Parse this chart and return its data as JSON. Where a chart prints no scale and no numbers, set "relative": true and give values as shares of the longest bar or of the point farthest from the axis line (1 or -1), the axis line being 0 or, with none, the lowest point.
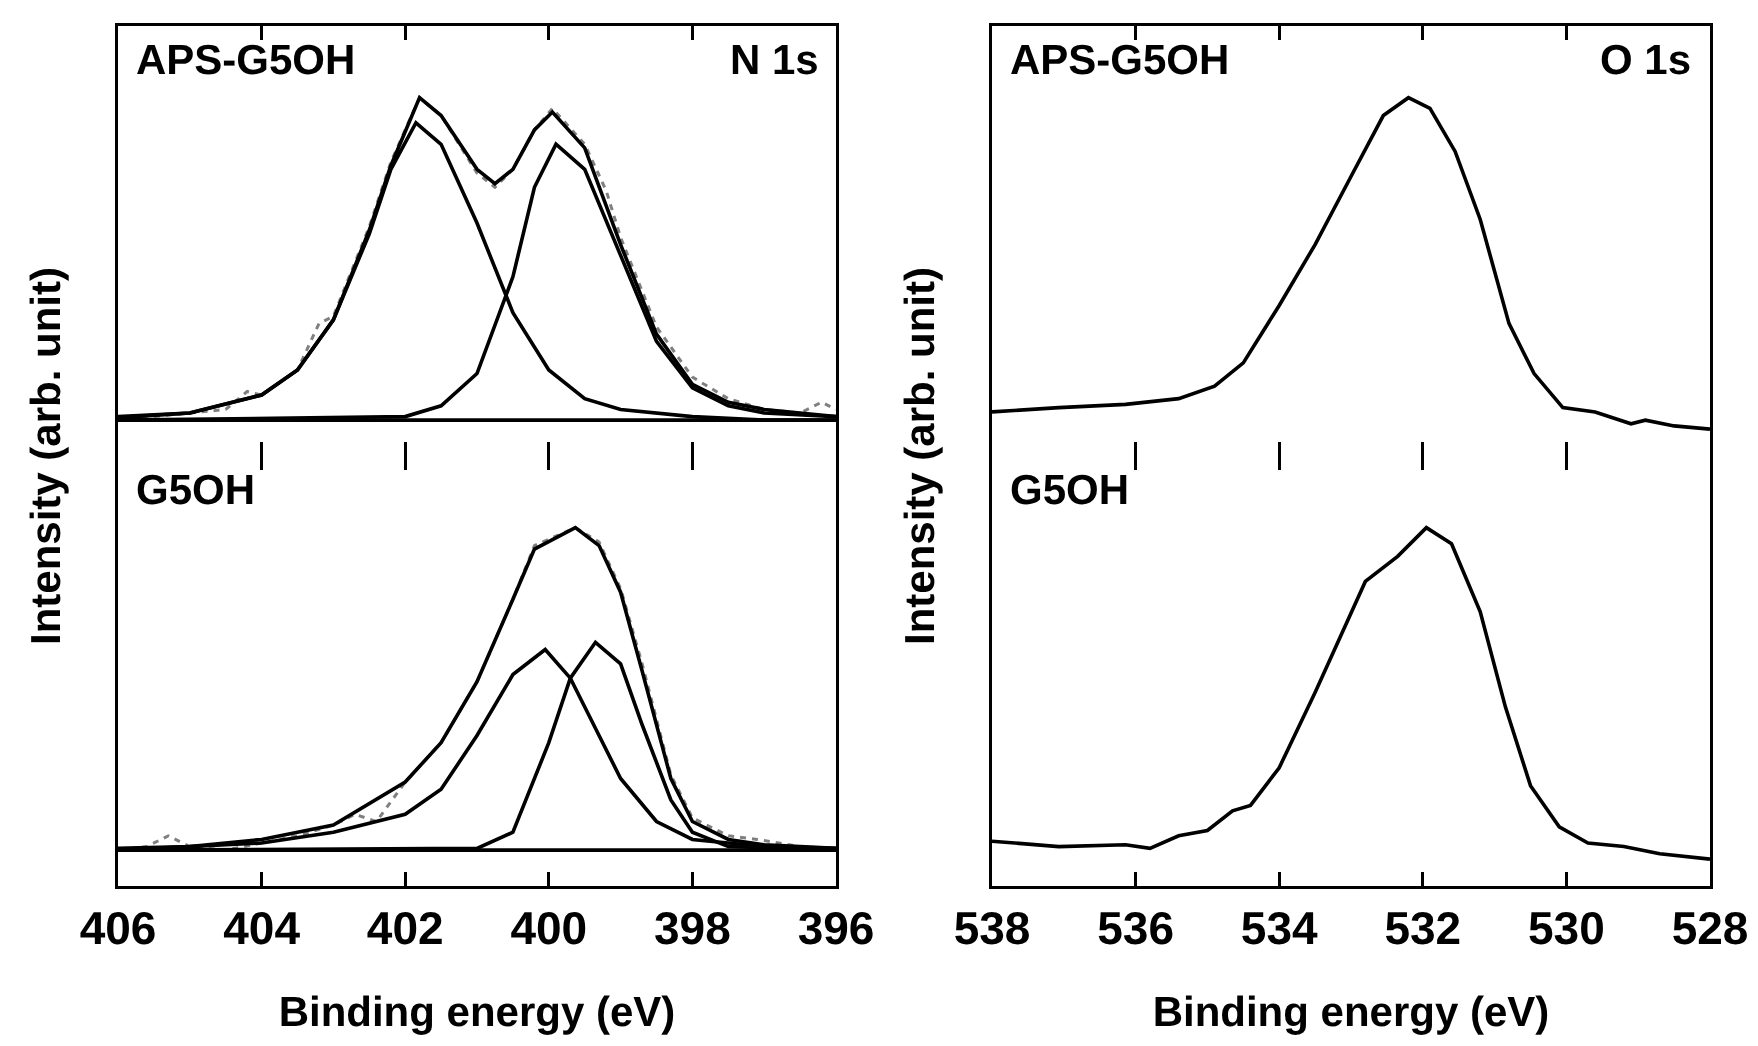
{
  "chart_data": [
    {
      "type": "line",
      "relative": true,
      "annotations": [
        "APS-G5OH",
        "N 1s"
      ],
      "xlim": [
        406,
        396
      ],
      "xticks": [
        406,
        404,
        402,
        400,
        398,
        396
      ],
      "tick_labels": false,
      "series": [
        {
          "color": "#808080",
          "line_style": "dotted",
          "x": [
            406,
            405.5,
            405,
            404.5,
            404.2,
            404,
            403.5,
            403.2,
            403,
            402.5,
            402.2,
            401.8,
            401.5,
            401,
            400.75,
            400.5,
            400.2,
            399.95,
            399.5,
            399.2,
            399,
            398.5,
            398,
            397.5,
            397,
            396.5,
            396.2,
            396
          ],
          "values": [
            0.1,
            0.11,
            0.12,
            0.13,
            0.18,
            0.17,
            0.24,
            0.37,
            0.39,
            0.64,
            0.82,
            1.0,
            0.95,
            0.79,
            0.75,
            0.8,
            0.91,
            0.97,
            0.87,
            0.74,
            0.61,
            0.36,
            0.22,
            0.16,
            0.13,
            0.12,
            0.15,
            0.13
          ]
        },
        {
          "color": "#000000",
          "line_style": "solid",
          "x": [
            406,
            405,
            404,
            403.5,
            403,
            402.5,
            402.2,
            401.8,
            401.5,
            401,
            400.75,
            400.5,
            400.2,
            399.95,
            399.5,
            399,
            398.5,
            398,
            397.5,
            397,
            396
          ],
          "values": [
            0.107,
            0.12,
            0.17,
            0.24,
            0.38,
            0.63,
            0.81,
            1.0,
            0.95,
            0.8,
            0.76,
            0.8,
            0.91,
            0.96,
            0.86,
            0.59,
            0.34,
            0.2,
            0.15,
            0.13,
            0.11
          ]
        },
        {
          "color": "#000000",
          "line_style": "solid",
          "x": [
            406,
            405,
            404,
            403.5,
            403,
            402.5,
            402.2,
            401.85,
            401.5,
            401,
            400.5,
            400,
            399.5,
            399,
            398,
            397,
            396
          ],
          "values": [
            0.11,
            0.12,
            0.17,
            0.24,
            0.38,
            0.62,
            0.8,
            0.93,
            0.87,
            0.65,
            0.4,
            0.24,
            0.16,
            0.13,
            0.11,
            0.1,
            0.1
          ]
        },
        {
          "color": "#000000",
          "line_style": "solid",
          "x": [
            406,
            402,
            401.5,
            401,
            400.5,
            400.2,
            399.9,
            399.5,
            399,
            398.5,
            398,
            397.5,
            397,
            396
          ],
          "values": [
            0.1,
            0.11,
            0.14,
            0.23,
            0.5,
            0.75,
            0.87,
            0.8,
            0.56,
            0.32,
            0.19,
            0.14,
            0.12,
            0.11
          ]
        },
        {
          "color": "#000000",
          "line_style": "solid",
          "x": [
            406,
            396
          ],
          "values": [
            0.1,
            0.1
          ]
        }
      ]
    },
    {
      "type": "line",
      "relative": true,
      "annotations": [
        "G5OH"
      ],
      "xlabel": "Binding energy (eV)",
      "ylabel": "Intensity (arb. unit)",
      "xlim": [
        406,
        396
      ],
      "xticks": [
        406,
        404,
        402,
        400,
        398,
        396
      ],
      "tick_labels": "x",
      "series": [
        {
          "color": "#808080",
          "line_style": "dotted",
          "x": [
            406,
            405.6,
            405.3,
            405,
            404.5,
            404,
            403.5,
            403,
            402.7,
            402.4,
            402,
            401.5,
            401,
            400.5,
            400.2,
            399.63,
            399.3,
            399,
            398.7,
            398.3,
            398,
            397.5,
            397.1,
            396.5,
            396
          ],
          "values": [
            0.1,
            0.11,
            0.14,
            0.11,
            0.1,
            0.12,
            0.14,
            0.17,
            0.2,
            0.18,
            0.29,
            0.4,
            0.57,
            0.8,
            0.95,
            1.0,
            0.96,
            0.83,
            0.62,
            0.31,
            0.19,
            0.14,
            0.13,
            0.11,
            0.105
          ]
        },
        {
          "color": "#000000",
          "line_style": "solid",
          "x": [
            406,
            405,
            404,
            403,
            402,
            401.5,
            401,
            400.5,
            400.2,
            399.63,
            399.3,
            399,
            398.7,
            398.3,
            398,
            397.5,
            397,
            396
          ],
          "values": [
            0.105,
            0.11,
            0.13,
            0.17,
            0.29,
            0.4,
            0.57,
            0.8,
            0.94,
            1.0,
            0.95,
            0.82,
            0.6,
            0.3,
            0.18,
            0.13,
            0.115,
            0.105
          ]
        },
        {
          "color": "#000000",
          "line_style": "solid",
          "x": [
            406,
            404,
            403,
            402,
            401.5,
            401,
            400.5,
            400.05,
            399.7,
            399.3,
            399,
            398.5,
            398,
            397,
            396
          ],
          "values": [
            0.1,
            0.12,
            0.15,
            0.2,
            0.27,
            0.42,
            0.59,
            0.66,
            0.58,
            0.42,
            0.3,
            0.18,
            0.13,
            0.11,
            0.105
          ]
        },
        {
          "color": "#000000",
          "line_style": "solid",
          "x": [
            406,
            401,
            400.5,
            400,
            399.7,
            399.35,
            399,
            398.7,
            398.3,
            398,
            397.5,
            396
          ],
          "values": [
            0.1,
            0.105,
            0.15,
            0.4,
            0.58,
            0.68,
            0.62,
            0.45,
            0.24,
            0.15,
            0.11,
            0.1
          ]
        },
        {
          "color": "#000000",
          "line_style": "solid",
          "x": [
            406,
            396
          ],
          "values": [
            0.1,
            0.1
          ]
        }
      ]
    },
    {
      "type": "line",
      "relative": true,
      "annotations": [
        "APS-G5OH",
        "O 1s"
      ],
      "xlim": [
        538,
        528
      ],
      "xticks": [
        538,
        536,
        534,
        532,
        530,
        528
      ],
      "tick_labels": false,
      "series": [
        {
          "color": "#000000",
          "line_style": "solid",
          "x": [
            538,
            537.07,
            536.14,
            535.4,
            534.9,
            534.5,
            534.0,
            533.5,
            533.0,
            532.55,
            532.2,
            531.9,
            531.55,
            531.2,
            530.8,
            530.45,
            530.05,
            529.6,
            529.1,
            528.9,
            528.5,
            528
          ],
          "values": [
            0.123,
            0.135,
            0.144,
            0.16,
            0.195,
            0.26,
            0.42,
            0.59,
            0.78,
            0.95,
            1.0,
            0.97,
            0.85,
            0.66,
            0.37,
            0.23,
            0.135,
            0.123,
            0.09,
            0.1,
            0.084,
            0.075
          ]
        }
      ]
    },
    {
      "type": "line",
      "relative": true,
      "annotations": [
        "G5OH"
      ],
      "xlabel": "Binding energy (eV)",
      "ylabel": "Intensity (arb. unit)",
      "xlim": [
        538,
        528
      ],
      "xticks": [
        538,
        536,
        534,
        532,
        530,
        528
      ],
      "tick_labels": "x",
      "series": [
        {
          "color": "#000000",
          "line_style": "solid",
          "x": [
            538,
            537.07,
            536.14,
            535.8,
            535.4,
            535.0,
            534.65,
            534.4,
            534.0,
            533.5,
            532.8,
            532.35,
            531.95,
            531.6,
            531.2,
            530.85,
            530.5,
            530.1,
            529.7,
            529.2,
            528.7,
            528
          ],
          "values": [
            0.125,
            0.11,
            0.115,
            0.105,
            0.14,
            0.155,
            0.21,
            0.225,
            0.33,
            0.54,
            0.85,
            0.92,
            1.0,
            0.955,
            0.765,
            0.5,
            0.28,
            0.165,
            0.12,
            0.11,
            0.09,
            0.075
          ]
        }
      ]
    }
  ]
}
